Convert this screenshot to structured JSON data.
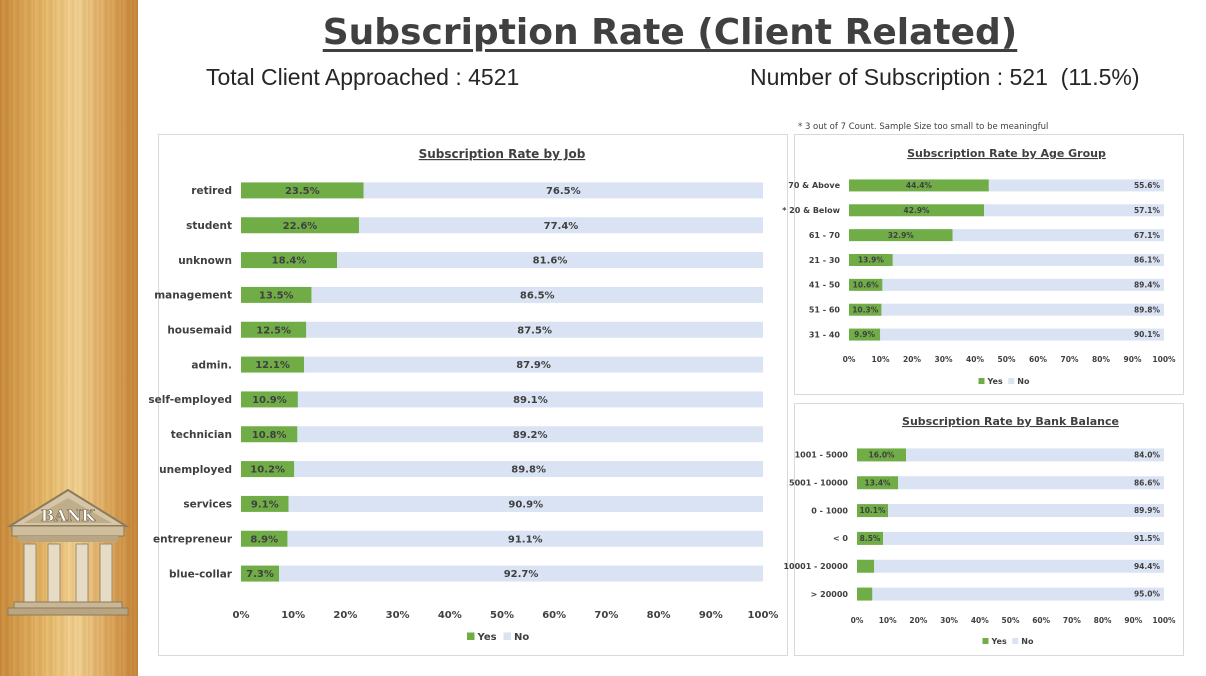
{
  "header": {
    "title": "Subscription Rate (Client Related)",
    "total_clients": "Total Client Approached : 4521",
    "subscriptions": "Number of Subscription : 521  (11.5%)",
    "note": "* 3 out of 7 Count. Sample Size too small to be meaningful",
    "logo_text": "BANK"
  },
  "colors": {
    "yes": "#70ad47",
    "no": "#dae3f3"
  },
  "chart_data": [
    {
      "id": "job",
      "type": "bar",
      "orientation": "horizontal",
      "stacked": true,
      "title": "Subscription Rate by Job",
      "categories": [
        "retired",
        "student",
        "unknown",
        "management",
        "housemaid",
        "admin.",
        "self-employed",
        "technician",
        "unemployed",
        "services",
        "entrepreneur",
        "blue-collar"
      ],
      "series": [
        {
          "name": "Yes",
          "values": [
            23.5,
            22.6,
            18.4,
            13.5,
            12.5,
            12.1,
            10.9,
            10.8,
            10.2,
            9.1,
            8.9,
            7.3
          ],
          "labels": [
            "23.5%",
            "22.6%",
            "18.4%",
            "13.5%",
            "12.5%",
            "12.1%",
            "10.9%",
            "10.8%",
            "10.2%",
            "9.1%",
            "8.9%",
            "7.3%"
          ]
        },
        {
          "name": "No",
          "values": [
            76.5,
            77.4,
            81.6,
            86.5,
            87.5,
            87.9,
            89.1,
            89.2,
            89.8,
            90.9,
            91.1,
            92.7
          ],
          "labels": [
            "76.5%",
            "77.4%",
            "81.6%",
            "86.5%",
            "87.5%",
            "87.9%",
            "89.1%",
            "89.2%",
            "89.8%",
            "90.9%",
            "91.1%",
            "92.7%"
          ]
        }
      ],
      "xlim": [
        0,
        100
      ],
      "ticks": [
        "0%",
        "10%",
        "20%",
        "30%",
        "40%",
        "50%",
        "60%",
        "70%",
        "80%",
        "90%",
        "100%"
      ],
      "legend": "bottom",
      "grid": false
    },
    {
      "id": "age",
      "type": "bar",
      "orientation": "horizontal",
      "stacked": true,
      "title": "Subscription Rate by Age Group",
      "categories": [
        "70 & Above",
        "* 20 & Below",
        "61 - 70",
        "21 - 30",
        "41 - 50",
        "51 - 60",
        "31 - 40"
      ],
      "series": [
        {
          "name": "Yes",
          "values": [
            44.4,
            42.9,
            32.9,
            13.9,
            10.6,
            10.3,
            9.9
          ],
          "labels": [
            "44.4%",
            "42.9%",
            "32.9%",
            "13.9%",
            "10.6%",
            "10.3%",
            "9.9%"
          ]
        },
        {
          "name": "No",
          "values": [
            55.6,
            57.1,
            67.1,
            86.1,
            89.4,
            89.8,
            90.1
          ],
          "labels": [
            "55.6%",
            "57.1%",
            "67.1%",
            "86.1%",
            "89.4%",
            "89.8%",
            "90.1%"
          ]
        }
      ],
      "xlim": [
        0,
        100
      ],
      "ticks": [
        "0%",
        "10%",
        "20%",
        "30%",
        "40%",
        "50%",
        "60%",
        "70%",
        "80%",
        "90%",
        "100%"
      ],
      "legend": "bottom",
      "grid": false
    },
    {
      "id": "bal",
      "type": "bar",
      "orientation": "horizontal",
      "stacked": true,
      "title": "Subscription Rate by Bank Balance",
      "categories": [
        "1001 - 5000",
        "5001 - 10000",
        "0 - 1000",
        "< 0",
        "10001 - 20000",
        "> 20000"
      ],
      "series": [
        {
          "name": "Yes",
          "values": [
            16.0,
            13.4,
            10.1,
            8.5,
            5.6,
            5.0
          ],
          "labels": [
            "16.0%",
            "13.4%",
            "10.1%",
            "8.5%",
            "",
            ""
          ]
        },
        {
          "name": "No",
          "values": [
            84.0,
            86.6,
            89.9,
            91.5,
            94.4,
            95.0
          ],
          "labels": [
            "84.0%",
            "86.6%",
            "89.9%",
            "91.5%",
            "94.4%",
            "95.0%"
          ]
        }
      ],
      "xlim": [
        0,
        100
      ],
      "ticks": [
        "0%",
        "10%",
        "20%",
        "30%",
        "40%",
        "50%",
        "60%",
        "70%",
        "80%",
        "90%",
        "100%"
      ],
      "legend": "bottom",
      "grid": false
    }
  ]
}
